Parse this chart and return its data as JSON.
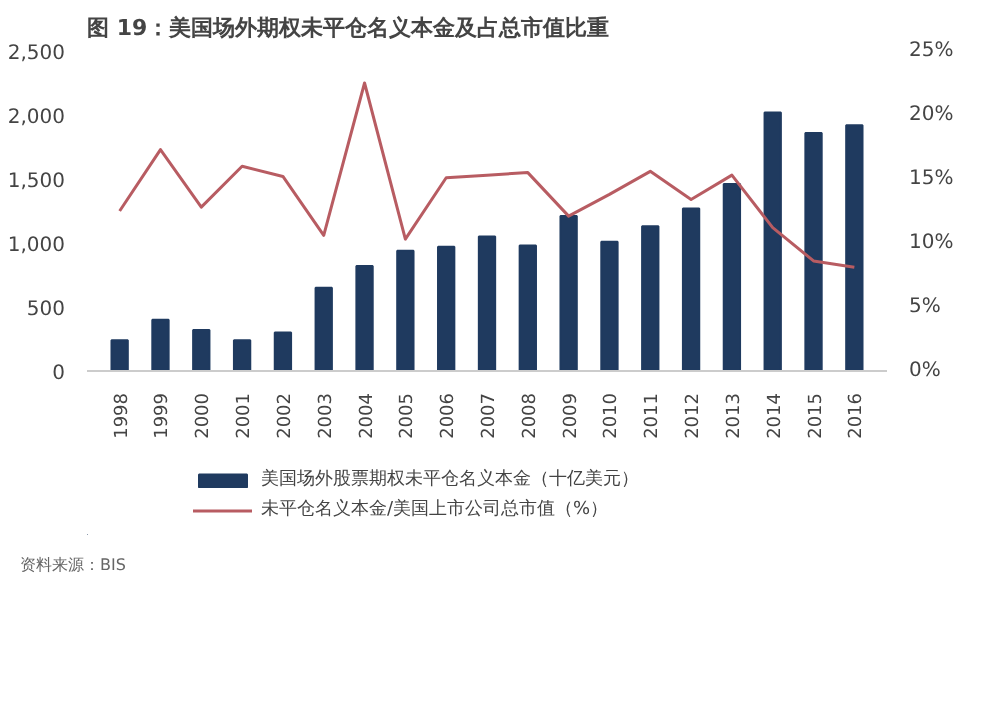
{
  "chart_data": {
    "type": "bar",
    "title": "图 19：美国场外期权未平仓名义本金及占总市值比重",
    "categories": [
      "1998",
      "1999",
      "2000",
      "2001",
      "2002",
      "2003",
      "2004",
      "2005",
      "2006",
      "2007",
      "2008",
      "2009",
      "2010",
      "2011",
      "2012",
      "2013",
      "2014",
      "2015",
      "2016"
    ],
    "series": [
      {
        "name": "美国场外股票期权未平仓名义本金（十亿美元）",
        "type": "bar",
        "color": "#1f3a5f",
        "values": [
          240,
          400,
          320,
          240,
          300,
          650,
          820,
          940,
          970,
          1050,
          980,
          1210,
          1010,
          1130,
          1270,
          1460,
          2020,
          1860,
          1920
        ]
      },
      {
        "name": "未平仓名义本金/美国上市公司总市值（%）",
        "type": "line",
        "axis": "y2",
        "color": "#b85c62",
        "values": [
          12.5,
          17.3,
          12.8,
          16.0,
          15.2,
          10.6,
          22.5,
          10.3,
          15.1,
          15.3,
          15.5,
          12.1,
          13.8,
          15.6,
          13.4,
          15.3,
          11.2,
          8.6,
          8.1
        ]
      }
    ],
    "ylim": [
      0,
      2500
    ],
    "yticks": [
      0,
      {
        "value": 500,
        "label": "500"
      },
      {
        "value": 1000,
        "label": "1,000"
      },
      {
        "value": 1500,
        "label": "1,500"
      },
      {
        "value": 2000,
        "label": "2,000"
      },
      {
        "value": 2500,
        "label": "2,500"
      }
    ],
    "y2lim": [
      0,
      25
    ],
    "y2ticks": [
      {
        "value": 0,
        "label": "0%"
      },
      {
        "value": 5,
        "label": "5%"
      },
      {
        "value": 10,
        "label": "10%"
      },
      {
        "value": 15,
        "label": "15%"
      },
      {
        "value": 20,
        "label": "20%"
      },
      {
        "value": 25,
        "label": "25%"
      }
    ],
    "legend": "bottom",
    "grid": false,
    "line_style": "solid",
    "marker": "none",
    "annotations": [
      "资料来源：BIS"
    ]
  }
}
